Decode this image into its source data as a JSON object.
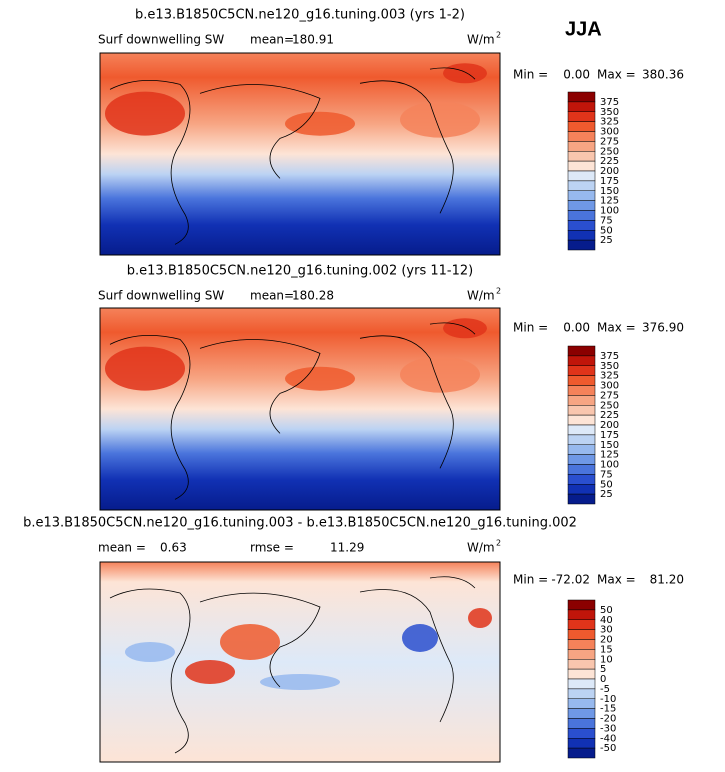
{
  "season": "JJA",
  "palette": [
    "#8b0000",
    "#c0150a",
    "#e0341a",
    "#ef5a2e",
    "#f5825a",
    "#f7a583",
    "#f9c6ae",
    "#fde4d6",
    "#dde9f8",
    "#bcd3f3",
    "#97b9ee",
    "#6f98e6",
    "#4a74dc",
    "#2a4fcf",
    "#1131b4",
    "#061c8c"
  ],
  "panels": [
    {
      "title": "b.e13.B1850C5CN.ne120_g16.tuning.003 (yrs 1-2)",
      "field": "Surf downwelling SW",
      "mean_label": "mean=",
      "mean": "180.91",
      "units": "W/m",
      "units_exp": "2",
      "min_label": "Min =",
      "min": "0.00",
      "max_label": "Max =",
      "max": "380.36",
      "colorbar": [
        "375",
        "350",
        "325",
        "300",
        "275",
        "250",
        "225",
        "200",
        "175",
        "150",
        "125",
        "100",
        "75",
        "50",
        "25"
      ]
    },
    {
      "title": "b.e13.B1850C5CN.ne120_g16.tuning.002 (yrs 11-12)",
      "field": "Surf downwelling SW",
      "mean_label": "mean=",
      "mean": "180.28",
      "units": "W/m",
      "units_exp": "2",
      "min_label": "Min =",
      "min": "0.00",
      "max_label": "Max =",
      "max": "376.90",
      "colorbar": [
        "375",
        "350",
        "325",
        "300",
        "275",
        "250",
        "225",
        "200",
        "175",
        "150",
        "125",
        "100",
        "75",
        "50",
        "25"
      ]
    },
    {
      "title": "b.e13.B1850C5CN.ne120_g16.tuning.003 - b.e13.B1850C5CN.ne120_g16.tuning.002",
      "mean_label": "mean =",
      "mean": "0.63",
      "rmse_label": "rmse =",
      "rmse": "11.29",
      "units": "W/m",
      "units_exp": "2",
      "min_label": "Min =",
      "min": "-72.02",
      "max_label": "Max =",
      "max": "81.20",
      "colorbar": [
        "50",
        "40",
        "30",
        "20",
        "15",
        "10",
        "5",
        "0",
        "-5",
        "-10",
        "-15",
        "-20",
        "-30",
        "-40",
        "-50"
      ]
    }
  ]
}
